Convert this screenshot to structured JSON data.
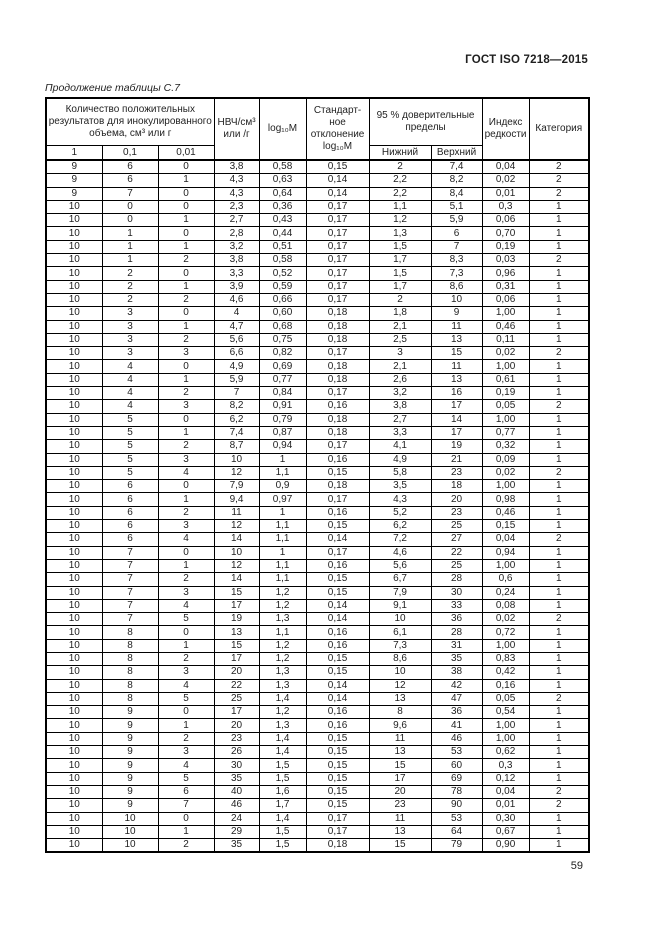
{
  "page": {
    "doc_ref": "ГОСТ ISO 7218—2015",
    "table_caption": "Продолжение таблицы С.7",
    "page_number": "59"
  },
  "table": {
    "header": {
      "positives_group": "Количество положительных результатов для инокулированного объема, см³ или г",
      "sub_1": "1",
      "sub_01": "0,1",
      "sub_001": "0,01",
      "mpn": "НВЧ/см³ или /г",
      "log10m": "log₁₀M",
      "stddev": "Стандарт-ное отклонение log₁₀M",
      "ci_group": "95 % доверительные пределы",
      "ci_lower": "Нижний",
      "ci_upper": "Верхний",
      "rarity": "Индекс редкости",
      "category": "Категория"
    },
    "rows": [
      [
        "9",
        "6",
        "0",
        "3,8",
        "0,58",
        "0,15",
        "2",
        "7,4",
        "0,04",
        "2"
      ],
      [
        "9",
        "6",
        "1",
        "4,3",
        "0,63",
        "0,14",
        "2,2",
        "8,2",
        "0,02",
        "2"
      ],
      [
        "9",
        "7",
        "0",
        "4,3",
        "0,64",
        "0,14",
        "2,2",
        "8,4",
        "0,01",
        "2"
      ],
      [
        "10",
        "0",
        "0",
        "2,3",
        "0,36",
        "0,17",
        "1,1",
        "5,1",
        "0,3",
        "1"
      ],
      [
        "10",
        "0",
        "1",
        "2,7",
        "0,43",
        "0,17",
        "1,2",
        "5,9",
        "0,06",
        "1"
      ],
      [
        "10",
        "1",
        "0",
        "2,8",
        "0,44",
        "0,17",
        "1,3",
        "6",
        "0,70",
        "1"
      ],
      [
        "10",
        "1",
        "1",
        "3,2",
        "0,51",
        "0,17",
        "1,5",
        "7",
        "0,19",
        "1"
      ],
      [
        "10",
        "1",
        "2",
        "3,8",
        "0,58",
        "0,17",
        "1,7",
        "8,3",
        "0,03",
        "2"
      ],
      [
        "10",
        "2",
        "0",
        "3,3",
        "0,52",
        "0,17",
        "1,5",
        "7,3",
        "0,96",
        "1"
      ],
      [
        "10",
        "2",
        "1",
        "3,9",
        "0,59",
        "0,17",
        "1,7",
        "8,6",
        "0,31",
        "1"
      ],
      [
        "10",
        "2",
        "2",
        "4,6",
        "0,66",
        "0,17",
        "2",
        "10",
        "0,06",
        "1"
      ],
      [
        "10",
        "3",
        "0",
        "4",
        "0,60",
        "0,18",
        "1,8",
        "9",
        "1,00",
        "1"
      ],
      [
        "10",
        "3",
        "1",
        "4,7",
        "0,68",
        "0,18",
        "2,1",
        "11",
        "0,46",
        "1"
      ],
      [
        "10",
        "3",
        "2",
        "5,6",
        "0,75",
        "0,18",
        "2,5",
        "13",
        "0,11",
        "1"
      ],
      [
        "10",
        "3",
        "3",
        "6,6",
        "0,82",
        "0,17",
        "3",
        "15",
        "0,02",
        "2"
      ],
      [
        "10",
        "4",
        "0",
        "4,9",
        "0,69",
        "0,18",
        "2,1",
        "11",
        "1,00",
        "1"
      ],
      [
        "10",
        "4",
        "1",
        "5,9",
        "0,77",
        "0,18",
        "2,6",
        "13",
        "0,61",
        "1"
      ],
      [
        "10",
        "4",
        "2",
        "7",
        "0,84",
        "0,17",
        "3,2",
        "16",
        "0,19",
        "1"
      ],
      [
        "10",
        "4",
        "3",
        "8,2",
        "0,91",
        "0,16",
        "3,8",
        "17",
        "0,05",
        "2"
      ],
      [
        "10",
        "5",
        "0",
        "6,2",
        "0,79",
        "0,18",
        "2,7",
        "14",
        "1,00",
        "1"
      ],
      [
        "10",
        "5",
        "1",
        "7,4",
        "0,87",
        "0,18",
        "3,3",
        "17",
        "0,77",
        "1"
      ],
      [
        "10",
        "5",
        "2",
        "8,7",
        "0,94",
        "0,17",
        "4,1",
        "19",
        "0,32",
        "1"
      ],
      [
        "10",
        "5",
        "3",
        "10",
        "1",
        "0,16",
        "4,9",
        "21",
        "0,09",
        "1"
      ],
      [
        "10",
        "5",
        "4",
        "12",
        "1,1",
        "0,15",
        "5,8",
        "23",
        "0,02",
        "2"
      ],
      [
        "10",
        "6",
        "0",
        "7,9",
        "0,9",
        "0,18",
        "3,5",
        "18",
        "1,00",
        "1"
      ],
      [
        "10",
        "6",
        "1",
        "9,4",
        "0,97",
        "0,17",
        "4,3",
        "20",
        "0,98",
        "1"
      ],
      [
        "10",
        "6",
        "2",
        "11",
        "1",
        "0,16",
        "5,2",
        "23",
        "0,46",
        "1"
      ],
      [
        "10",
        "6",
        "3",
        "12",
        "1,1",
        "0,15",
        "6,2",
        "25",
        "0,15",
        "1"
      ],
      [
        "10",
        "6",
        "4",
        "14",
        "1,1",
        "0,14",
        "7,2",
        "27",
        "0,04",
        "2"
      ],
      [
        "10",
        "7",
        "0",
        "10",
        "1",
        "0,17",
        "4,6",
        "22",
        "0,94",
        "1"
      ],
      [
        "10",
        "7",
        "1",
        "12",
        "1,1",
        "0,16",
        "5,6",
        "25",
        "1,00",
        "1"
      ],
      [
        "10",
        "7",
        "2",
        "14",
        "1,1",
        "0,15",
        "6,7",
        "28",
        "0,6",
        "1"
      ],
      [
        "10",
        "7",
        "3",
        "15",
        "1,2",
        "0,15",
        "7,9",
        "30",
        "0,24",
        "1"
      ],
      [
        "10",
        "7",
        "4",
        "17",
        "1,2",
        "0,14",
        "9,1",
        "33",
        "0,08",
        "1"
      ],
      [
        "10",
        "7",
        "5",
        "19",
        "1,3",
        "0,14",
        "10",
        "36",
        "0,02",
        "2"
      ],
      [
        "10",
        "8",
        "0",
        "13",
        "1,1",
        "0,16",
        "6,1",
        "28",
        "0,72",
        "1"
      ],
      [
        "10",
        "8",
        "1",
        "15",
        "1,2",
        "0,16",
        "7,3",
        "31",
        "1,00",
        "1"
      ],
      [
        "10",
        "8",
        "2",
        "17",
        "1,2",
        "0,15",
        "8,6",
        "35",
        "0,83",
        "1"
      ],
      [
        "10",
        "8",
        "3",
        "20",
        "1,3",
        "0,15",
        "10",
        "38",
        "0,42",
        "1"
      ],
      [
        "10",
        "8",
        "4",
        "22",
        "1,3",
        "0,14",
        "12",
        "42",
        "0,16",
        "1"
      ],
      [
        "10",
        "8",
        "5",
        "25",
        "1,4",
        "0,14",
        "13",
        "47",
        "0,05",
        "2"
      ],
      [
        "10",
        "9",
        "0",
        "17",
        "1,2",
        "0,16",
        "8",
        "36",
        "0,54",
        "1"
      ],
      [
        "10",
        "9",
        "1",
        "20",
        "1,3",
        "0,16",
        "9,6",
        "41",
        "1,00",
        "1"
      ],
      [
        "10",
        "9",
        "2",
        "23",
        "1,4",
        "0,15",
        "11",
        "46",
        "1,00",
        "1"
      ],
      [
        "10",
        "9",
        "3",
        "26",
        "1,4",
        "0,15",
        "13",
        "53",
        "0,62",
        "1"
      ],
      [
        "10",
        "9",
        "4",
        "30",
        "1,5",
        "0,15",
        "15",
        "60",
        "0,3",
        "1"
      ],
      [
        "10",
        "9",
        "5",
        "35",
        "1,5",
        "0,15",
        "17",
        "69",
        "0,12",
        "1"
      ],
      [
        "10",
        "9",
        "6",
        "40",
        "1,6",
        "0,15",
        "20",
        "78",
        "0,04",
        "2"
      ],
      [
        "10",
        "9",
        "7",
        "46",
        "1,7",
        "0,15",
        "23",
        "90",
        "0,01",
        "2"
      ],
      [
        "10",
        "10",
        "0",
        "24",
        "1,4",
        "0,17",
        "11",
        "53",
        "0,30",
        "1"
      ],
      [
        "10",
        "10",
        "1",
        "29",
        "1,5",
        "0,17",
        "13",
        "64",
        "0,67",
        "1"
      ],
      [
        "10",
        "10",
        "2",
        "35",
        "1,5",
        "0,18",
        "15",
        "79",
        "0,90",
        "1"
      ]
    ]
  }
}
